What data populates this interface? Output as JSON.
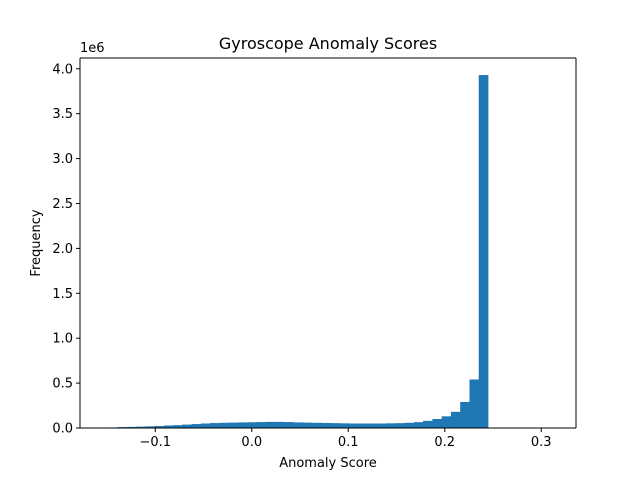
{
  "chart_data": {
    "type": "bar",
    "title": "Gyroscope Anomaly Scores",
    "xlabel": "Anomaly Score",
    "ylabel": "Frequency",
    "y_offset_label": "1e6",
    "xlim": [
      -0.178,
      0.336
    ],
    "ylim": [
      0,
      4.12
    ],
    "y_unit_multiplier": 1000000,
    "x_ticks": [
      -0.1,
      0.0,
      0.1,
      0.2,
      0.3
    ],
    "x_tick_labels": [
      "−0.1",
      "0.0",
      "0.1",
      "0.2",
      "0.3"
    ],
    "y_ticks": [
      0.0,
      0.5,
      1.0,
      1.5,
      2.0,
      2.5,
      3.0,
      3.5,
      4.0
    ],
    "y_tick_labels": [
      "0.0",
      "0.5",
      "1.0",
      "1.5",
      "2.0",
      "2.5",
      "3.0",
      "3.5",
      "4.0"
    ],
    "grid": false,
    "legend": "none",
    "bar_color": "#1f77b4",
    "bins": {
      "start": -0.168,
      "width": 0.0096,
      "counts_millions": [
        0.002,
        0.004,
        0.006,
        0.01,
        0.012,
        0.015,
        0.018,
        0.022,
        0.028,
        0.032,
        0.038,
        0.044,
        0.05,
        0.055,
        0.058,
        0.06,
        0.062,
        0.064,
        0.066,
        0.068,
        0.068,
        0.066,
        0.062,
        0.06,
        0.058,
        0.056,
        0.054,
        0.052,
        0.05,
        0.05,
        0.05,
        0.05,
        0.052,
        0.054,
        0.058,
        0.065,
        0.08,
        0.1,
        0.13,
        0.18,
        0.29,
        0.54,
        3.93
      ]
    }
  }
}
